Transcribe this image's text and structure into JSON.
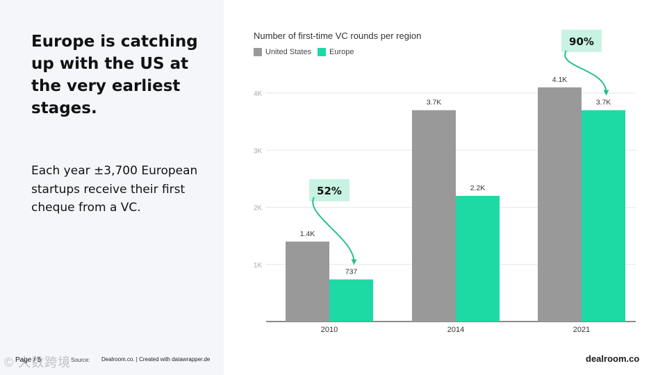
{
  "slide": {
    "headline": "Europe is catching up with the US at the very earliest stages.",
    "body": "Each year ±3,700 European startups receive their first cheque from a VC.",
    "page_label": "Page / 5",
    "source_label": "Source:",
    "source_text": "Dealroom.co. | Created with datawrapper.de",
    "watermark": "© 大数跨境",
    "brand": "dealroom.co"
  },
  "colors": {
    "us": "#999999",
    "europe": "#1dd9a4",
    "annotation_bg": "#c8f3e3",
    "arrow": "#26c08e",
    "gridline": "#e6e6e6"
  },
  "chart_data": {
    "type": "bar",
    "title": "Number of first-time VC rounds per region",
    "categories": [
      "2010",
      "2014",
      "2021"
    ],
    "series": [
      {
        "name": "United States",
        "values": [
          1400,
          3700,
          4100
        ],
        "labels": [
          "1.4K",
          "3.7K",
          "4.1K"
        ]
      },
      {
        "name": "Europe",
        "values": [
          737,
          2200,
          3700
        ],
        "labels": [
          "737",
          "2.2K",
          "3.7K"
        ]
      }
    ],
    "yticks": [
      1000,
      2000,
      3000,
      4000
    ],
    "ytick_labels": [
      "1K",
      "2K",
      "3K",
      "4K"
    ],
    "ylim": [
      0,
      4100
    ],
    "grid": true,
    "legend": "top-left",
    "annotations": [
      {
        "category": "2010",
        "text": "52%"
      },
      {
        "category": "2021",
        "text": "90%"
      }
    ]
  }
}
